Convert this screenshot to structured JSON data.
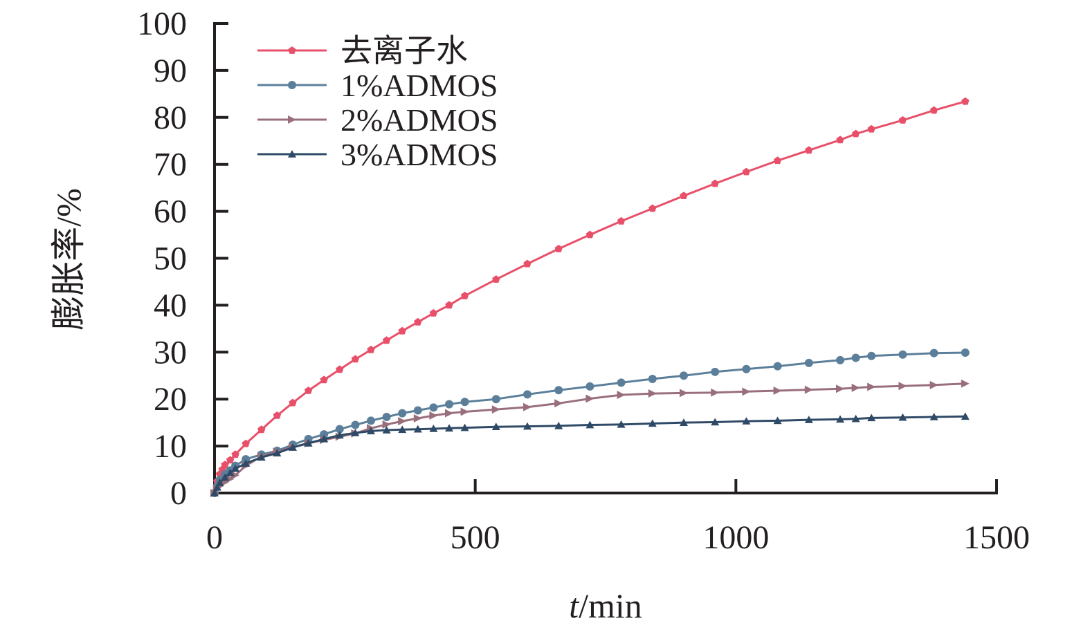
{
  "chart_data": {
    "type": "line",
    "title": "",
    "xlabel_italic": "t",
    "xlabel_rest": "/min",
    "ylabel": "膨胀率/%",
    "xlim": [
      0,
      1500
    ],
    "ylim": [
      0,
      100
    ],
    "x_ticks": [
      0,
      500,
      1000,
      1500
    ],
    "x_tick_labels": [
      "0",
      "500",
      "1000",
      "1500"
    ],
    "y_ticks": [
      0,
      10,
      20,
      30,
      40,
      50,
      60,
      70,
      80,
      90,
      100
    ],
    "y_tick_labels": [
      "0",
      "10",
      "20",
      "30",
      "40",
      "50",
      "60",
      "70",
      "80",
      "90",
      "100"
    ],
    "grid": false,
    "legend_position": "top-left",
    "series": [
      {
        "name": "去离子水",
        "color": "#e8506a",
        "marker": "pentagon",
        "x": [
          0,
          5,
          10,
          15,
          20,
          30,
          40,
          60,
          90,
          120,
          150,
          180,
          210,
          240,
          270,
          300,
          330,
          360,
          390,
          420,
          450,
          480,
          540,
          600,
          660,
          720,
          780,
          840,
          900,
          960,
          1020,
          1080,
          1140,
          1200,
          1230,
          1260,
          1320,
          1380,
          1440
        ],
        "y": [
          0,
          2.5,
          4,
          5,
          6,
          7,
          8.2,
          10.5,
          13.5,
          16.5,
          19.2,
          21.8,
          24.1,
          26.3,
          28.5,
          30.5,
          32.5,
          34.5,
          36.4,
          38.3,
          40,
          42,
          45.5,
          48.8,
          52,
          55,
          57.9,
          60.6,
          63.3,
          65.9,
          68.4,
          70.8,
          73,
          75.2,
          76.5,
          77.5,
          79.4,
          81.5,
          83.4
        ]
      },
      {
        "name": "1%ADMOS",
        "color": "#5b7f9a",
        "marker": "circle",
        "x": [
          0,
          5,
          10,
          20,
          30,
          40,
          60,
          90,
          120,
          150,
          180,
          210,
          240,
          270,
          300,
          330,
          360,
          390,
          420,
          450,
          480,
          540,
          600,
          660,
          720,
          780,
          840,
          900,
          960,
          1020,
          1080,
          1140,
          1200,
          1230,
          1260,
          1320,
          1380,
          1440
        ],
        "y": [
          0,
          1.5,
          2.8,
          4,
          4.8,
          5.8,
          7.2,
          8.2,
          9,
          10.3,
          11.5,
          12.5,
          13.6,
          14.5,
          15.4,
          16.2,
          17,
          17.6,
          18.2,
          18.9,
          19.4,
          20,
          21,
          21.9,
          22.7,
          23.5,
          24.3,
          25,
          25.8,
          26.4,
          27,
          27.7,
          28.3,
          28.8,
          29.2,
          29.5,
          29.8,
          29.9
        ]
      },
      {
        "name": "2%ADMOS",
        "color": "#9a6f7c",
        "marker": "triangle-right",
        "x": [
          0,
          5,
          10,
          20,
          30,
          40,
          60,
          90,
          120,
          150,
          180,
          210,
          240,
          270,
          300,
          330,
          360,
          390,
          420,
          450,
          480,
          540,
          600,
          660,
          720,
          780,
          840,
          900,
          960,
          1020,
          1080,
          1140,
          1200,
          1230,
          1260,
          1320,
          1380,
          1440
        ],
        "y": [
          0,
          0.8,
          1.5,
          2.3,
          3,
          3.8,
          5.8,
          7.8,
          8.8,
          9.8,
          10.6,
          11.3,
          12,
          12.7,
          13.8,
          14.6,
          15.3,
          15.9,
          16.5,
          17,
          17.3,
          17.8,
          18.3,
          19.1,
          20.1,
          20.9,
          21.2,
          21.3,
          21.4,
          21.6,
          21.8,
          22,
          22.2,
          22.4,
          22.6,
          22.8,
          23,
          23.3
        ]
      },
      {
        "name": "3%ADMOS",
        "color": "#2f4a66",
        "marker": "triangle-up",
        "x": [
          0,
          5,
          10,
          20,
          30,
          40,
          60,
          90,
          120,
          150,
          180,
          210,
          240,
          270,
          300,
          330,
          360,
          390,
          420,
          450,
          480,
          540,
          600,
          660,
          720,
          780,
          840,
          900,
          960,
          1020,
          1080,
          1140,
          1200,
          1230,
          1260,
          1320,
          1380,
          1440
        ],
        "y": [
          0,
          1.2,
          2.2,
          3.3,
          4.3,
          5.2,
          6.3,
          7.6,
          8.5,
          9.7,
          10.6,
          11.5,
          12.3,
          12.8,
          13.2,
          13.4,
          13.5,
          13.6,
          13.7,
          13.8,
          13.9,
          14.1,
          14.2,
          14.3,
          14.5,
          14.6,
          14.8,
          15,
          15.1,
          15.3,
          15.4,
          15.6,
          15.7,
          15.8,
          16,
          16.1,
          16.2,
          16.3
        ]
      }
    ]
  }
}
